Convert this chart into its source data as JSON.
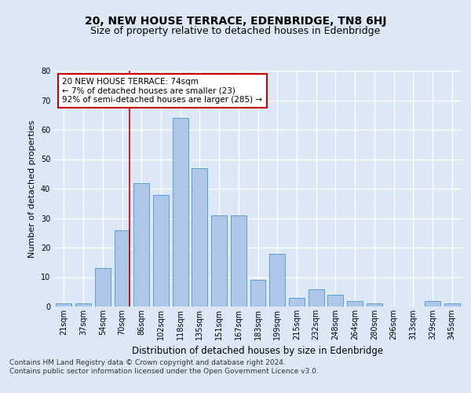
{
  "title": "20, NEW HOUSE TERRACE, EDENBRIDGE, TN8 6HJ",
  "subtitle": "Size of property relative to detached houses in Edenbridge",
  "xlabel": "Distribution of detached houses by size in Edenbridge",
  "ylabel": "Number of detached properties",
  "categories": [
    "21sqm",
    "37sqm",
    "54sqm",
    "70sqm",
    "86sqm",
    "102sqm",
    "118sqm",
    "135sqm",
    "151sqm",
    "167sqm",
    "183sqm",
    "199sqm",
    "215sqm",
    "232sqm",
    "248sqm",
    "264sqm",
    "280sqm",
    "296sqm",
    "313sqm",
    "329sqm",
    "345sqm"
  ],
  "values": [
    1,
    1,
    13,
    26,
    42,
    38,
    64,
    47,
    31,
    31,
    9,
    18,
    3,
    6,
    4,
    2,
    1,
    0,
    0,
    2,
    1
  ],
  "bar_color": "#aec6e8",
  "bar_edge_color": "#5a9fd4",
  "vline_color": "#cc0000",
  "vline_x_index": 3,
  "annotation_text": "20 NEW HOUSE TERRACE: 74sqm\n← 7% of detached houses are smaller (23)\n92% of semi-detached houses are larger (285) →",
  "annotation_box_color": "#ffffff",
  "annotation_box_edge": "#cc0000",
  "ylim": [
    0,
    80
  ],
  "yticks": [
    0,
    10,
    20,
    30,
    40,
    50,
    60,
    70,
    80
  ],
  "footer": "Contains HM Land Registry data © Crown copyright and database right 2024.\nContains public sector information licensed under the Open Government Licence v3.0.",
  "background_color": "#dce8f5",
  "plot_bg_color": "#dce8f5",
  "grid_color": "#ffffff",
  "title_fontsize": 10,
  "subtitle_fontsize": 9,
  "xlabel_fontsize": 8.5,
  "ylabel_fontsize": 8,
  "tick_fontsize": 7,
  "annotation_fontsize": 7.5,
  "footer_fontsize": 6.5
}
